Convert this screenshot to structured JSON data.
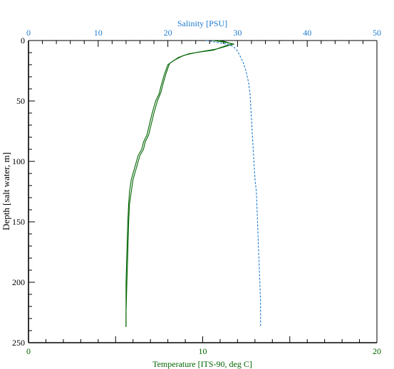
{
  "chart_data": {
    "type": "line",
    "x_bottom_label": "Temperature [ITS-90, deg C]",
    "x_top_label": "Salinity [PSU]",
    "ylabel": "Depth [salt water, m]",
    "temperature_range": [
      0,
      20
    ],
    "salinity_range": [
      0,
      50
    ],
    "depth_range": [
      0,
      250
    ],
    "y_inverted": true,
    "temperature_ticks": [
      "0",
      "10",
      "20"
    ],
    "salinity_ticks": [
      "0",
      "10",
      "20",
      "30",
      "40",
      "50"
    ],
    "depth_ticks": [
      "0",
      "50",
      "100",
      "150",
      "200",
      "250"
    ],
    "grid": false,
    "colors": {
      "temperature": "#006400",
      "salinity": "#1e7bd0",
      "axis": "#000000"
    },
    "series": [
      {
        "axis": "temperature",
        "style": "solid",
        "points": [
          [
            10.6,
            0
          ],
          [
            11.1,
            1
          ],
          [
            11.5,
            2
          ],
          [
            11.8,
            3
          ],
          [
            11.4,
            4
          ],
          [
            11.0,
            6
          ],
          [
            10.6,
            8
          ],
          [
            9.6,
            10
          ],
          [
            9.0,
            12
          ],
          [
            8.6,
            14
          ],
          [
            8.3,
            17
          ],
          [
            8.0,
            20
          ],
          [
            7.9,
            24
          ],
          [
            7.8,
            28
          ],
          [
            7.7,
            33
          ],
          [
            7.6,
            38
          ],
          [
            7.5,
            44
          ],
          [
            7.3,
            50
          ],
          [
            7.2,
            55
          ],
          [
            7.1,
            60
          ],
          [
            7.0,
            66
          ],
          [
            6.9,
            72
          ],
          [
            6.8,
            78
          ],
          [
            6.6,
            84
          ],
          [
            6.5,
            90
          ],
          [
            6.3,
            95
          ],
          [
            6.2,
            100
          ],
          [
            6.1,
            105
          ],
          [
            6.0,
            110
          ],
          [
            5.9,
            115
          ],
          [
            5.8,
            125
          ],
          [
            5.75,
            135
          ],
          [
            5.7,
            150
          ],
          [
            5.65,
            175
          ],
          [
            5.6,
            200
          ],
          [
            5.6,
            225
          ],
          [
            5.6,
            237
          ]
        ]
      },
      {
        "axis": "temperature",
        "style": "solid",
        "points": [
          [
            10.9,
            0
          ],
          [
            11.3,
            1
          ],
          [
            11.7,
            3
          ],
          [
            11.3,
            5
          ],
          [
            10.8,
            7
          ],
          [
            10.0,
            9
          ],
          [
            9.2,
            11
          ],
          [
            8.8,
            13
          ],
          [
            8.4,
            16
          ],
          [
            8.1,
            19
          ],
          [
            8.0,
            23
          ],
          [
            7.9,
            27
          ],
          [
            7.8,
            32
          ],
          [
            7.7,
            37
          ],
          [
            7.6,
            43
          ],
          [
            7.4,
            50
          ],
          [
            7.3,
            55
          ],
          [
            7.2,
            60
          ],
          [
            7.1,
            66
          ],
          [
            7.0,
            72
          ],
          [
            6.9,
            78
          ],
          [
            6.7,
            84
          ],
          [
            6.6,
            90
          ],
          [
            6.4,
            95
          ],
          [
            6.3,
            100
          ],
          [
            6.2,
            105
          ],
          [
            6.1,
            110
          ],
          [
            6.0,
            115
          ],
          [
            5.9,
            125
          ],
          [
            5.8,
            135
          ],
          [
            5.75,
            150
          ],
          [
            5.7,
            175
          ],
          [
            5.65,
            200
          ],
          [
            5.6,
            225
          ],
          [
            5.6,
            237
          ]
        ]
      },
      {
        "axis": "salinity",
        "style": "dashed",
        "points": [
          [
            25.5,
            0
          ],
          [
            26.5,
            1
          ],
          [
            27.5,
            2
          ],
          [
            28.5,
            3
          ],
          [
            29.4,
            5
          ],
          [
            29.9,
            8
          ],
          [
            30.3,
            12
          ],
          [
            30.8,
            18
          ],
          [
            31.2,
            25
          ],
          [
            31.6,
            35
          ],
          [
            31.8,
            45
          ],
          [
            31.9,
            55
          ],
          [
            32.0,
            65
          ],
          [
            32.1,
            75
          ],
          [
            32.2,
            85
          ],
          [
            32.3,
            95
          ],
          [
            32.4,
            105
          ],
          [
            32.5,
            115
          ],
          [
            32.7,
            125
          ],
          [
            32.8,
            140
          ],
          [
            32.9,
            155
          ],
          [
            33.0,
            170
          ],
          [
            33.1,
            185
          ],
          [
            33.2,
            200
          ],
          [
            33.3,
            215
          ],
          [
            33.3,
            237
          ]
        ]
      }
    ]
  }
}
